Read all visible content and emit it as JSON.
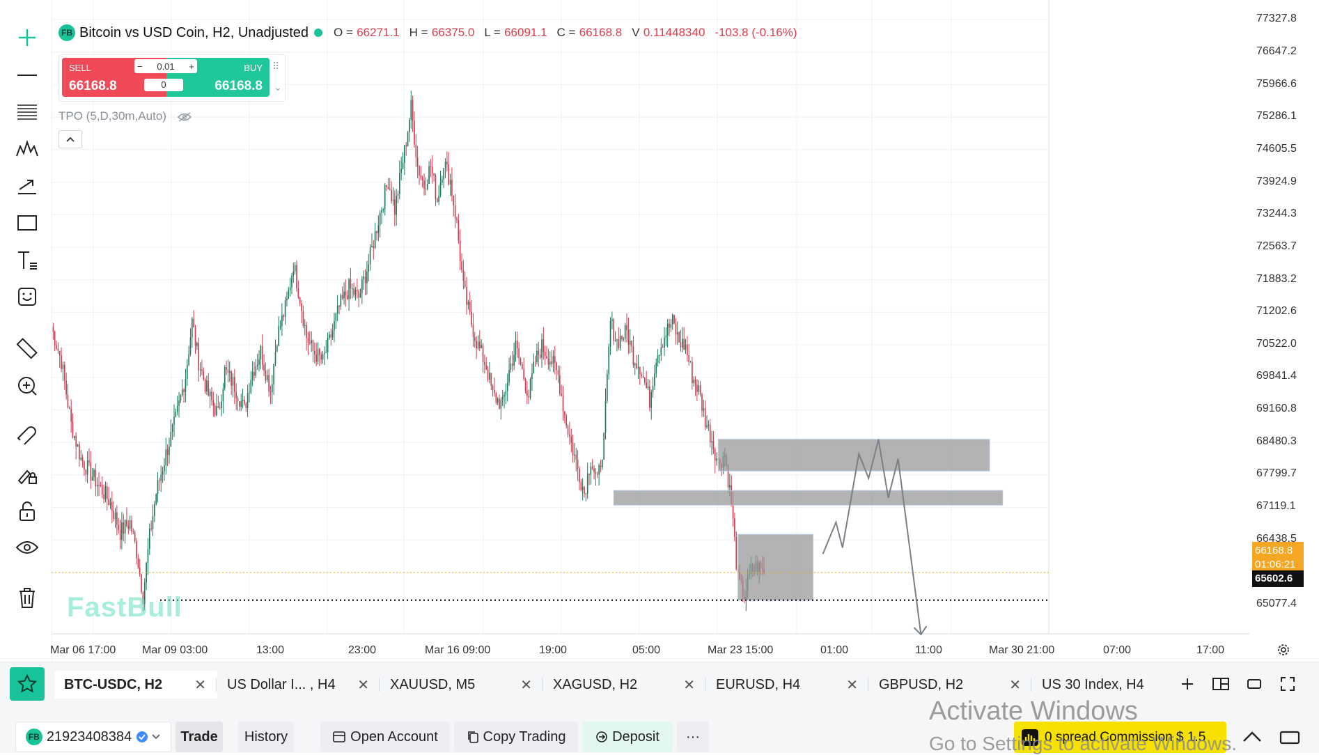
{
  "legend": {
    "symbol_badge": "FB",
    "title": "Bitcoin vs USD Coin, H2, Unadjusted",
    "o_label": "O =",
    "o_value": "66271.1",
    "h_label": "H =",
    "h_value": "66375.0",
    "l_label": "L =",
    "l_value": "66091.1",
    "c_label": "C =",
    "c_value": "66168.8",
    "v_label": "V",
    "v_value": "0.11448340",
    "change": "-103.8 (-0.16%)"
  },
  "trade_widget": {
    "sell_label": "SELL",
    "sell_price": "66168.8",
    "buy_label": "BUY",
    "buy_price": "66168.8",
    "qty_minus": "−",
    "qty_value": "0.01",
    "qty_plus": "+",
    "amount": "0"
  },
  "indicator": {
    "label": "TPO (5,D,30m,Auto)",
    "collapse_glyph": "^"
  },
  "watermark": "FastBull",
  "price_axis": [
    "77327.8",
    "76647.2",
    "75966.6",
    "75286.1",
    "74605.5",
    "73924.9",
    "73244.3",
    "72563.7",
    "71883.2",
    "71202.6",
    "70522.0",
    "69841.4",
    "69160.8",
    "68480.3",
    "67799.7",
    "67119.1",
    "66438.5",
    "65077.4"
  ],
  "last_price": "66168.8",
  "countdown": "01:06:21",
  "low_line_price": "65602.6",
  "time_axis": [
    "Mar 06 17:00",
    "Mar 09 03:00",
    "13:00",
    "23:00",
    "Mar 16 09:00",
    "19:00",
    "05:00",
    "Mar 23 15:00",
    "01:00",
    "11:00",
    "Mar 30 21:00",
    "07:00",
    "17:00"
  ],
  "tabs": [
    {
      "label": "BTC-USDC, H2",
      "active": true
    },
    {
      "label": "US Dollar I... , H4",
      "active": false
    },
    {
      "label": "XAUUSD, M5",
      "active": false
    },
    {
      "label": "XAGUSD, H2",
      "active": false
    },
    {
      "label": "EURUSD, H4",
      "active": false
    },
    {
      "label": "GBPUSD, H2",
      "active": false
    },
    {
      "label": "US 30 Index, H4",
      "active": false
    }
  ],
  "tab_close_glyph": "✕",
  "bottom": {
    "account_badge": "FB",
    "account_id": "21923408384",
    "trade": "Trade",
    "history": "History",
    "open_account": "Open Account",
    "copy_trading": "Copy Trading",
    "deposit": "Deposit",
    "more": "···",
    "promo": "0 spread Commission $ 1.5"
  },
  "os_overlay": {
    "line1": "Activate Windows",
    "line2": "Go to Settings to activate Windows."
  },
  "colors": {
    "up": "#1a7a5a",
    "down": "#d23a4f",
    "accent": "#19c39a",
    "sell": "#f04a58",
    "last_price": "#f5a623"
  },
  "chart_data": {
    "type": "candlestick",
    "symbol": "BTC-USDC",
    "timeframe": "H2",
    "ylim": [
      64800,
      77500
    ],
    "close_path": [
      [
        0,
        71200
      ],
      [
        6,
        70500
      ],
      [
        12,
        69200
      ],
      [
        18,
        68500
      ],
      [
        24,
        68200
      ],
      [
        30,
        67900
      ],
      [
        36,
        67600
      ],
      [
        42,
        67000
      ],
      [
        48,
        67200
      ],
      [
        52,
        66600
      ],
      [
        56,
        65700
      ],
      [
        60,
        66900
      ],
      [
        64,
        67800
      ],
      [
        70,
        68600
      ],
      [
        76,
        69300
      ],
      [
        82,
        70200
      ],
      [
        86,
        71300
      ],
      [
        90,
        70500
      ],
      [
        96,
        69800
      ],
      [
        102,
        69400
      ],
      [
        106,
        70300
      ],
      [
        112,
        70000
      ],
      [
        118,
        69500
      ],
      [
        122,
        70200
      ],
      [
        128,
        70700
      ],
      [
        134,
        69900
      ],
      [
        138,
        71000
      ],
      [
        144,
        71700
      ],
      [
        148,
        72500
      ],
      [
        152,
        71800
      ],
      [
        156,
        71000
      ],
      [
        160,
        70700
      ],
      [
        166,
        70500
      ],
      [
        170,
        70900
      ],
      [
        176,
        71600
      ],
      [
        182,
        72000
      ],
      [
        188,
        71800
      ],
      [
        194,
        72500
      ],
      [
        200,
        73400
      ],
      [
        206,
        74200
      ],
      [
        210,
        73600
      ],
      [
        216,
        74800
      ],
      [
        220,
        75700
      ],
      [
        224,
        74500
      ],
      [
        228,
        74100
      ],
      [
        232,
        74500
      ],
      [
        236,
        73800
      ],
      [
        240,
        74600
      ],
      [
        244,
        74200
      ],
      [
        248,
        73300
      ],
      [
        252,
        72000
      ],
      [
        256,
        71400
      ],
      [
        260,
        70900
      ],
      [
        266,
        70400
      ],
      [
        270,
        69800
      ],
      [
        276,
        69600
      ],
      [
        280,
        70300
      ],
      [
        284,
        70800
      ],
      [
        288,
        70300
      ],
      [
        292,
        69800
      ],
      [
        296,
        70500
      ],
      [
        300,
        70800
      ],
      [
        306,
        70500
      ],
      [
        310,
        70200
      ],
      [
        314,
        69400
      ],
      [
        318,
        68800
      ],
      [
        322,
        68300
      ],
      [
        326,
        67800
      ],
      [
        330,
        68500
      ],
      [
        334,
        68000
      ],
      [
        338,
        68900
      ],
      [
        342,
        71300
      ],
      [
        346,
        70900
      ],
      [
        352,
        71100
      ],
      [
        356,
        70600
      ],
      [
        360,
        70400
      ],
      [
        366,
        69700
      ],
      [
        370,
        70600
      ],
      [
        376,
        71100
      ],
      [
        380,
        71300
      ],
      [
        384,
        70900
      ],
      [
        388,
        70800
      ],
      [
        392,
        70200
      ],
      [
        396,
        69900
      ],
      [
        400,
        69300
      ],
      [
        404,
        68900
      ],
      [
        408,
        68400
      ],
      [
        412,
        68600
      ],
      [
        416,
        67600
      ],
      [
        420,
        66000
      ],
      [
        424,
        65700
      ],
      [
        428,
        66200
      ],
      [
        432,
        66300
      ],
      [
        436,
        66168.8
      ]
    ],
    "annotations": [
      {
        "type": "zone",
        "from_index": 408,
        "to_index": 574,
        "low": 68250,
        "high": 68900
      },
      {
        "type": "zone",
        "from_index": 344,
        "to_index": 582,
        "low": 67550,
        "high": 67850
      },
      {
        "type": "zone",
        "from_index": 420,
        "to_index": 466,
        "low": 65602.6,
        "high": 66950
      },
      {
        "type": "horizontal_line",
        "price": 65602.6,
        "style": "dotted"
      },
      {
        "type": "horizontal_line",
        "price": 66168.8,
        "style": "dotted",
        "color": "#f5a623"
      },
      {
        "type": "projection_path",
        "points": [
          [
            472,
            66550
          ],
          [
            480,
            67200
          ],
          [
            484,
            66680
          ],
          [
            494,
            68600
          ],
          [
            500,
            68100
          ],
          [
            506,
            68900
          ],
          [
            512,
            67700
          ],
          [
            518,
            68500
          ],
          [
            532,
            64900
          ]
        ]
      }
    ]
  }
}
